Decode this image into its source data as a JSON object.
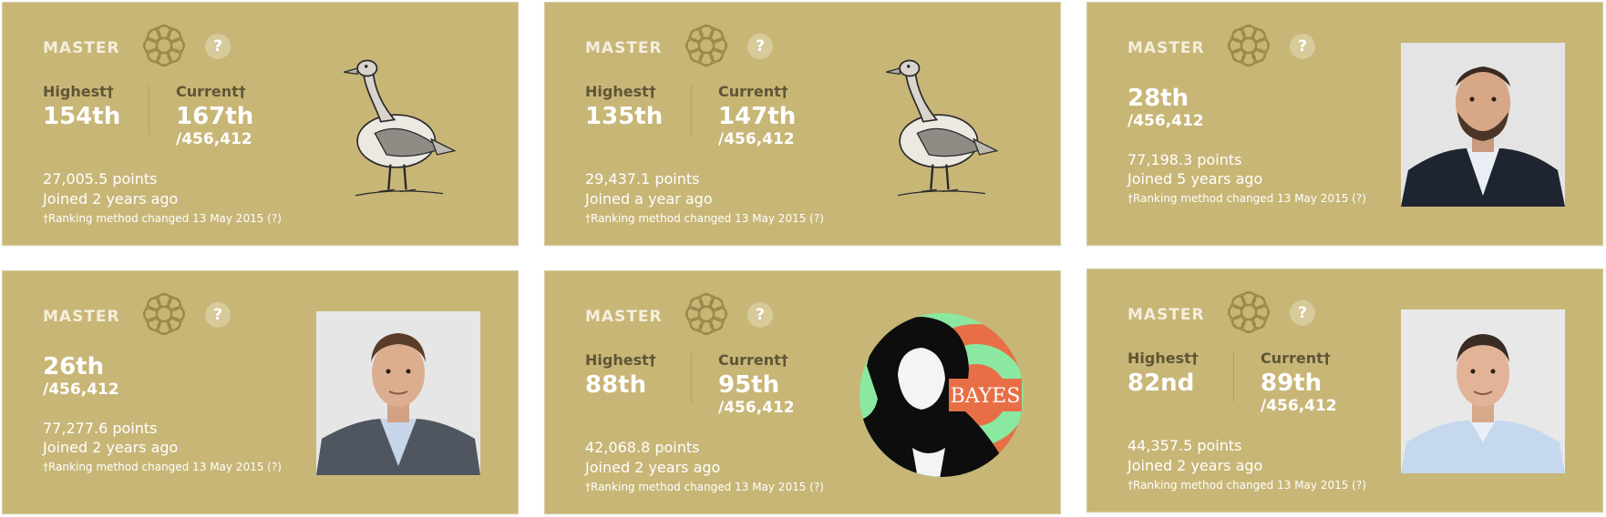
{
  "cards": [
    {
      "tier": "MASTER",
      "help": "?",
      "highest_label": "Highest†",
      "highest": "154th",
      "current_label": "Current†",
      "current": "167th",
      "total": "/456,412",
      "points": "27,005.5 points",
      "joined": "Joined 2 years ago",
      "note": "†Ranking method changed 13 May 2015 (?)",
      "avatar": "goose-illustration"
    },
    {
      "tier": "MASTER",
      "help": "?",
      "highest_label": "Highest†",
      "highest": "135th",
      "current_label": "Current†",
      "current": "147th",
      "total": "/456,412",
      "points": "29,437.1 points",
      "joined": "Joined a year ago",
      "note": "†Ranking method changed 13 May 2015 (?)",
      "avatar": "goose-illustration"
    },
    {
      "tier": "MASTER",
      "help": "?",
      "rank": "28th",
      "total": "/456,412",
      "points": "77,198.3 points",
      "joined": "Joined 5 years ago",
      "note": "†Ranking method changed 13 May 2015 (?)",
      "avatar": "bearded-man-photo"
    },
    {
      "tier": "MASTER",
      "help": "?",
      "rank": "26th",
      "total": "/456,412",
      "points": "77,277.6 points",
      "joined": "Joined 2 years ago",
      "note": "†Ranking method changed 13 May 2015 (?)",
      "avatar": "man-grey-suit-photo"
    },
    {
      "tier": "MASTER",
      "help": "?",
      "highest_label": "Highest†",
      "highest": "88th",
      "current_label": "Current†",
      "current": "95th",
      "total": "/456,412",
      "points": "42,068.8 points",
      "joined": "Joined 2 years ago",
      "note": "†Ranking method changed 13 May 2015 (?)",
      "avatar": "bayes-target-logo",
      "avatar_text": "BAYES"
    },
    {
      "tier": "MASTER",
      "help": "?",
      "highest_label": "Highest†",
      "highest": "82nd",
      "current_label": "Current†",
      "current": "89th",
      "total": "/456,412",
      "points": "44,357.5 points",
      "joined": "Joined 2 years ago",
      "note": "†Ranking method changed 13 May 2015 (?)",
      "avatar": "man-blue-shirt-photo"
    }
  ],
  "colors": {
    "card_bg": "#c8b677",
    "label": "#5f5536",
    "emblem": "#9c8a4d"
  }
}
